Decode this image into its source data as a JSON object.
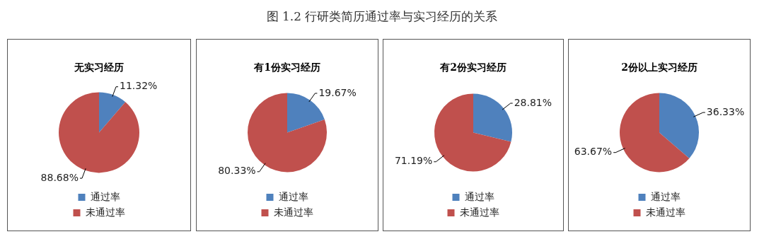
{
  "chart_data": [
    {
      "type": "pie",
      "title": "无实习经历",
      "annotations": [
        "图 1.2  行研类简历通过率与实习经历的关系"
      ],
      "categories": [
        "通过率",
        "未通过率"
      ],
      "values": [
        11.32,
        88.68
      ],
      "value_labels": [
        "11.32%",
        "88.68%"
      ],
      "colors": [
        "#4f81bd",
        "#c0504d"
      ],
      "legend": "bottom"
    },
    {
      "type": "pie",
      "title": "有1份实习经历",
      "categories": [
        "通过率",
        "未通过率"
      ],
      "values": [
        19.67,
        80.33
      ],
      "value_labels": [
        "19.67%",
        "80.33%"
      ],
      "colors": [
        "#4f81bd",
        "#c0504d"
      ],
      "legend": "bottom"
    },
    {
      "type": "pie",
      "title": "有2份实习经历",
      "categories": [
        "通过率",
        "未通过率"
      ],
      "values": [
        28.81,
        71.19
      ],
      "value_labels": [
        "28.81%",
        "71.19%"
      ],
      "colors": [
        "#4f81bd",
        "#c0504d"
      ],
      "legend": "bottom"
    },
    {
      "type": "pie",
      "title": "2份以上实习经历",
      "categories": [
        "通过率",
        "未通过率"
      ],
      "values": [
        36.33,
        63.67
      ],
      "value_labels": [
        "36.33%",
        "63.67%"
      ],
      "colors": [
        "#4f81bd",
        "#c0504d"
      ],
      "legend": "bottom"
    }
  ]
}
